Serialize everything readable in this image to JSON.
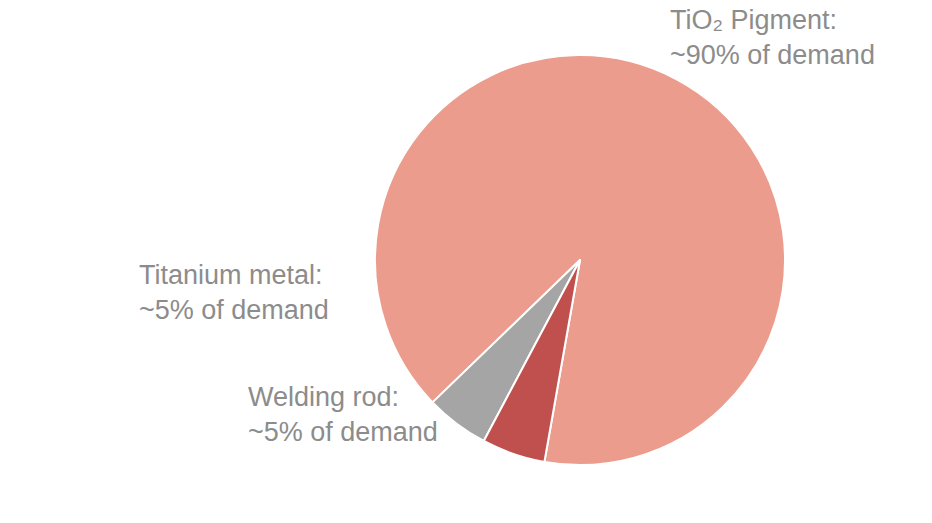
{
  "chart_data": {
    "type": "pie",
    "categories": [
      "TiO₂ Pigment:",
      "Titanium metal:",
      "Welding rod:"
    ],
    "values": [
      90,
      5,
      5
    ],
    "value_labels": [
      "~90% of demand",
      "~5% of demand",
      "~5% of demand"
    ],
    "colors": [
      "#ec9c8d",
      "#a5a5a5",
      "#c0504d"
    ]
  }
}
